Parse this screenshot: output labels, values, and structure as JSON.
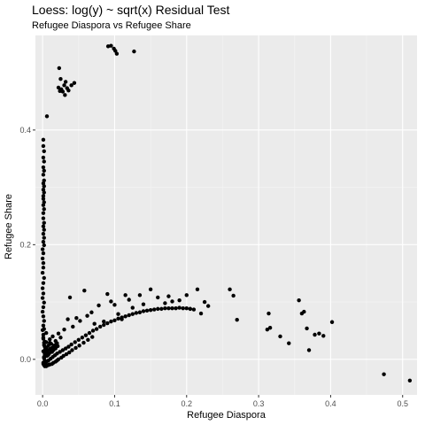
{
  "chart_data": {
    "type": "scatter",
    "title": "Loess: log(y) ~ sqrt(x) Residual Test",
    "subtitle": "Refugee Diaspora vs Refugee Share",
    "xlabel": "Refugee Diaspora",
    "ylabel": "Refugee Share",
    "xlim": [
      -0.01,
      0.52
    ],
    "ylim": [
      -0.062,
      0.565
    ],
    "x_ticks": [
      0.0,
      0.1,
      0.2,
      0.3,
      0.4,
      0.5
    ],
    "x_tick_labels": [
      "0.0",
      "0.1",
      "0.2",
      "0.3",
      "0.4",
      "0.5"
    ],
    "y_ticks": [
      0.0,
      0.2,
      0.4
    ],
    "y_tick_labels": [
      "0.0",
      "0.2",
      "0.4"
    ],
    "grid": true,
    "colors": {
      "panel_background": "#ebebeb",
      "grid_major": "#ffffff",
      "grid_minor": "#f5f5f5",
      "point": "#000000",
      "tick_label": "#4d4d4d"
    },
    "series": [
      {
        "x": [
          0.091,
          0.095,
          0.099,
          0.101,
          0.103,
          0.127,
          0.023,
          0.025,
          0.022,
          0.026,
          0.028,
          0.03,
          0.032,
          0.034,
          0.036,
          0.04,
          0.044,
          0.031,
          0.024,
          0.006,
          0.001,
          0.001,
          0.002,
          0.001,
          0.002,
          0.001,
          0.002,
          0.001,
          0.002,
          0.001,
          0.002,
          0.001,
          0.002,
          0.001,
          0.001,
          0.002,
          0.001,
          0.002,
          0.001,
          0.001,
          0.002,
          0.001,
          0.002,
          0.001,
          0.002,
          0.001,
          0.002,
          0.0,
          0.001,
          0.0,
          0.001,
          0.001,
          0.0,
          0.002,
          0.001,
          0.0,
          0.001,
          0.0,
          0.002,
          0.001,
          0.0,
          0.001,
          0.002,
          0.001,
          0.0,
          0.001,
          0.001,
          0.002,
          0.003,
          0.004,
          0.005,
          0.006,
          0.002,
          0.003,
          0.001,
          0.004,
          0.005,
          0.002,
          0.003,
          0.001,
          0.004,
          0.002,
          0.003,
          0.001,
          0.005,
          0.002,
          0.001,
          0.003,
          0.005,
          0.008,
          0.011,
          0.014,
          0.017,
          0.02,
          0.024,
          0.028,
          0.032,
          0.036,
          0.04,
          0.045,
          0.05,
          0.055,
          0.06,
          0.065,
          0.07,
          0.075,
          0.08,
          0.085,
          0.09,
          0.095,
          0.1,
          0.105,
          0.11,
          0.115,
          0.12,
          0.125,
          0.13,
          0.135,
          0.14,
          0.145,
          0.15,
          0.155,
          0.16,
          0.165,
          0.17,
          0.175,
          0.18,
          0.185,
          0.19,
          0.195,
          0.2,
          0.205,
          0.21,
          0.003,
          0.004,
          0.006,
          0.007,
          0.009,
          0.01,
          0.012,
          0.013,
          0.015,
          0.016,
          0.018,
          0.019,
          0.021,
          0.002,
          0.003,
          0.005,
          0.008,
          0.01,
          0.013,
          0.003,
          0.006,
          0.008,
          0.01,
          0.013,
          0.015,
          0.018,
          0.02,
          0.022,
          0.026,
          0.029,
          0.033,
          0.037,
          0.041,
          0.046,
          0.051,
          0.057,
          0.063,
          0.069,
          0.002,
          0.005,
          0.009,
          0.005,
          0.008,
          0.01,
          0.012,
          0.014,
          0.016,
          0.018,
          0.02,
          0.022,
          0.025,
          0.03,
          0.035,
          0.038,
          0.042,
          0.047,
          0.052,
          0.058,
          0.062,
          0.068,
          0.072,
          0.078,
          0.085,
          0.09,
          0.095,
          0.1,
          0.105,
          0.11,
          0.115,
          0.12,
          0.125,
          0.135,
          0.14,
          0.15,
          0.16,
          0.17,
          0.175,
          0.18,
          0.19,
          0.2,
          0.205,
          0.215,
          0.22,
          0.225,
          0.23,
          0.26,
          0.265,
          0.27,
          0.312,
          0.314,
          0.316,
          0.33,
          0.342,
          0.356,
          0.36,
          0.363,
          0.367,
          0.37,
          0.378,
          0.384,
          0.39,
          0.402,
          0.474,
          0.51
        ],
        "y": [
          0.546,
          0.547,
          0.542,
          0.538,
          0.533,
          0.537,
          0.508,
          0.489,
          0.474,
          0.471,
          0.467,
          0.478,
          0.484,
          0.473,
          0.469,
          0.478,
          0.482,
          0.461,
          0.468,
          0.424,
          0.383,
          0.372,
          0.363,
          0.352,
          0.345,
          0.335,
          0.329,
          0.322,
          0.312,
          0.307,
          0.302,
          0.296,
          0.291,
          0.285,
          0.28,
          0.274,
          0.269,
          0.262,
          0.255,
          0.246,
          0.238,
          0.232,
          0.226,
          0.219,
          0.212,
          0.205,
          0.199,
          0.192,
          0.185,
          0.176,
          0.168,
          0.16,
          0.151,
          0.142,
          0.133,
          0.124,
          0.115,
          0.107,
          0.099,
          0.091,
          0.083,
          0.075,
          0.067,
          0.059,
          0.051,
          0.043,
          0.036,
          0.029,
          0.022,
          0.016,
          0.011,
          0.006,
          0.002,
          -0.002,
          -0.006,
          -0.009,
          -0.004,
          0.004,
          0.01,
          0.014,
          0.019,
          0.025,
          0.031,
          0.038,
          0.046,
          0.053,
          -0.008,
          -0.006,
          -0.004,
          -0.002,
          0.001,
          0.004,
          0.007,
          0.01,
          0.013,
          0.016,
          0.019,
          0.022,
          0.026,
          0.03,
          0.034,
          0.038,
          0.042,
          0.046,
          0.05,
          0.053,
          0.057,
          0.06,
          0.063,
          0.066,
          0.068,
          0.071,
          0.073,
          0.075,
          0.077,
          0.079,
          0.081,
          0.082,
          0.084,
          0.085,
          0.086,
          0.087,
          0.088,
          0.088,
          0.089,
          0.089,
          0.089,
          0.089,
          0.09,
          0.089,
          0.089,
          0.088,
          0.087,
          0.009,
          0.012,
          0.006,
          0.015,
          0.01,
          0.018,
          0.013,
          0.02,
          0.016,
          0.024,
          0.019,
          0.027,
          0.023,
          0.004,
          0.016,
          0.02,
          0.008,
          0.029,
          0.013,
          -0.012,
          -0.011,
          -0.01,
          -0.009,
          -0.008,
          -0.006,
          -0.004,
          -0.002,
          0.0,
          0.003,
          0.006,
          0.009,
          0.012,
          0.016,
          0.02,
          0.024,
          0.029,
          0.034,
          0.039,
          -0.01,
          -0.012,
          -0.009,
          0.03,
          0.024,
          0.035,
          0.027,
          0.04,
          0.022,
          0.032,
          0.028,
          0.045,
          0.038,
          0.052,
          0.07,
          0.108,
          0.057,
          0.072,
          0.067,
          0.12,
          0.076,
          0.082,
          0.062,
          0.094,
          0.066,
          0.114,
          0.101,
          0.095,
          0.079,
          0.07,
          0.112,
          0.104,
          0.09,
          0.112,
          0.096,
          0.122,
          0.108,
          0.098,
          0.11,
          0.101,
          0.103,
          0.112,
          0.088,
          0.122,
          0.08,
          0.1,
          0.093,
          0.122,
          0.111,
          0.069,
          0.052,
          0.08,
          0.055,
          0.04,
          0.028,
          0.103,
          0.08,
          0.083,
          0.054,
          0.016,
          0.043,
          0.045,
          0.041,
          0.065,
          -0.026,
          -0.037
        ]
      }
    ]
  }
}
